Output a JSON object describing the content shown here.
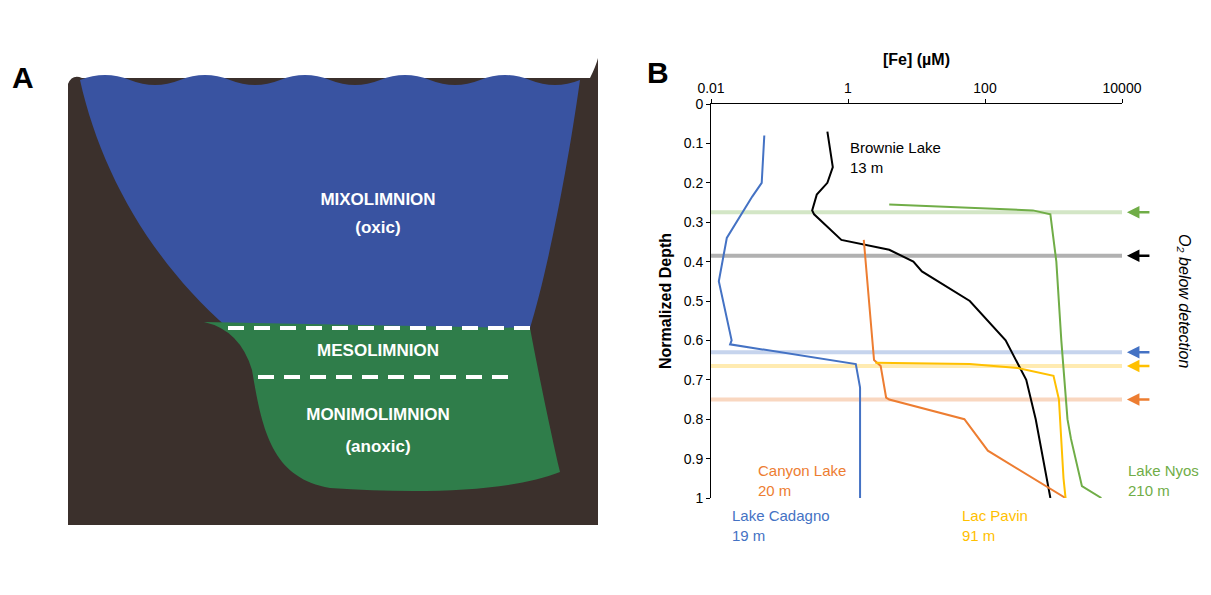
{
  "diagram": {
    "panel_label": "A",
    "layers": [
      {
        "name": "MIXOLIMNION",
        "condition": "(oxic)"
      },
      {
        "name": "MESOLIMNION"
      },
      {
        "name": "MONIMOLIMNION",
        "condition": "(anoxic)"
      }
    ]
  },
  "chart_data": {
    "type": "line",
    "panel_label": "B",
    "x_label": "[Fe] (µM)",
    "y_label": "Normalized Depth",
    "log": "x",
    "grid": false,
    "xlim": [
      0.01,
      10000
    ],
    "xticks": [
      0.01,
      1,
      100,
      10000
    ],
    "ylim": [
      1,
      0
    ],
    "yticks": [
      0,
      0.1,
      0.2,
      0.3,
      0.4,
      0.5,
      0.6,
      0.7,
      0.8,
      0.9,
      1
    ],
    "annotation": "O₂ below detection",
    "series": [
      {
        "name": "Brownie Lake",
        "note": "13 m",
        "color": "#000000",
        "o2_depth": 0.385,
        "values": [
          0.07,
          0.16,
          0.2,
          0.23,
          0.27,
          0.28,
          0.345,
          0.37,
          0.4,
          0.425,
          0.5,
          0.6,
          0.7,
          0.8,
          1.0
        ],
        "x": [
          0.5,
          0.6,
          0.5,
          0.35,
          0.3,
          0.32,
          0.8,
          4,
          9,
          12,
          60,
          200,
          400,
          550,
          900
        ]
      },
      {
        "name": "Lake Cadagno",
        "note": "19 m",
        "color": "#4472c4",
        "o2_depth": 0.63,
        "values": [
          0.08,
          0.2,
          0.235,
          0.34,
          0.45,
          0.5,
          0.6,
          0.61,
          0.63,
          0.655,
          0.66,
          0.72,
          1.0
        ],
        "x": [
          0.06,
          0.055,
          0.04,
          0.017,
          0.013,
          0.015,
          0.02,
          0.019,
          0.1,
          0.9,
          1.3,
          1.5,
          1.5
        ]
      },
      {
        "name": "Canyon Lake",
        "note": "20 m",
        "color": "#ed7d31",
        "o2_depth": 0.75,
        "values": [
          0.345,
          0.5,
          0.65,
          0.665,
          0.745,
          0.75,
          0.8,
          0.88,
          0.95,
          1.0
        ],
        "x": [
          1.7,
          2,
          2.4,
          3,
          3.6,
          4,
          50,
          110,
          500,
          1500
        ]
      },
      {
        "name": "Lac Pavin",
        "note": "91 m",
        "color": "#ffc000",
        "o2_depth": 0.665,
        "values": [
          0.657,
          0.66,
          0.67,
          0.69,
          0.75,
          0.85,
          0.9,
          0.95,
          1.0
        ],
        "x": [
          2.5,
          60,
          300,
          1000,
          1200,
          1300,
          1350,
          1400,
          1500
        ]
      },
      {
        "name": "Lake Nyos",
        "note": "210 m",
        "color": "#70ad47",
        "o2_depth": 0.275,
        "values": [
          0.255,
          0.27,
          0.28,
          0.4,
          0.6,
          0.8,
          0.85,
          0.97,
          1.0
        ],
        "x": [
          4,
          500,
          900,
          1100,
          1300,
          1600,
          1800,
          2600,
          5000
        ]
      }
    ]
  }
}
